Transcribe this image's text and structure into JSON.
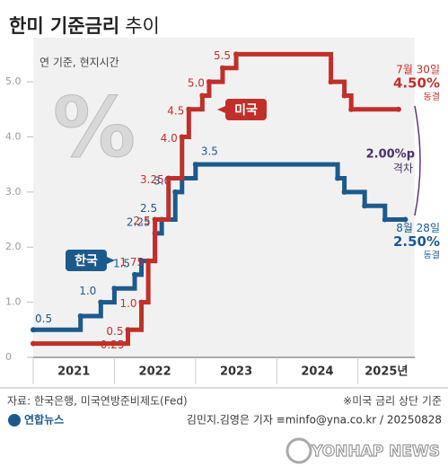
{
  "chart_data": {
    "type": "step",
    "title": "한미 기준금리",
    "title_suffix": "추이",
    "subtitle": "연 기준, 현지시간",
    "decor_symbol": "%",
    "xlim": [
      2021,
      2025.7
    ],
    "xticks": [
      {
        "value": 2021,
        "label": "2021"
      },
      {
        "value": 2022,
        "label": "2022"
      },
      {
        "value": 2023,
        "label": "2023"
      },
      {
        "value": 2024,
        "label": "2024"
      },
      {
        "value": 2025,
        "label": "2025년"
      }
    ],
    "ylim": [
      0,
      5.8
    ],
    "yticks": [
      0,
      {
        "value": 1,
        "label": "1.0"
      },
      {
        "value": 2,
        "label": "2.0"
      },
      {
        "value": 3,
        "label": "3.0"
      },
      {
        "value": 4,
        "label": "4.0"
      },
      {
        "value": 5,
        "label": "5.0"
      }
    ],
    "series": [
      {
        "name": "한국",
        "color": "#1d5a8c",
        "x": [
          2021,
          2021.583,
          2021.833,
          2022,
          2022.25,
          2022.333,
          2022.5,
          2022.583,
          2022.75,
          2022.833,
          2023,
          2024.75,
          2024.833,
          2025.083,
          2025.333,
          2025.583
        ],
        "values": [
          0.5,
          0.75,
          1,
          1.25,
          1.5,
          1.75,
          2.25,
          2.5,
          3,
          3.25,
          3.5,
          3.25,
          3,
          2.75,
          2.5,
          2.5
        ],
        "value_labels": [
          "0.5",
          null,
          "1.0",
          null,
          "1.5",
          null,
          "2.25",
          "2.5",
          "3.0",
          null,
          "3.5",
          null,
          null,
          null,
          null,
          null
        ],
        "end_date": "8월 28일",
        "end_value": "2.50%",
        "end_note": "동결"
      },
      {
        "name": "미국",
        "color": "#c0302a",
        "x": [
          2021,
          2022.167,
          2022.333,
          2022.417,
          2022.5,
          2022.667,
          2022.833,
          2022.917,
          2023.083,
          2023.167,
          2023.333,
          2023.5,
          2024.667,
          2024.833,
          2024.917,
          2025.5
        ],
        "values": [
          0.25,
          0.5,
          1,
          1.75,
          2.5,
          3.25,
          4,
          4.5,
          4.75,
          5,
          5.25,
          5.5,
          5,
          4.75,
          4.5,
          4.5
        ],
        "value_labels": [
          "0.25",
          "0.5",
          "1.0",
          "1.75",
          "2.5",
          "3.25",
          "4.0",
          "4.5",
          null,
          "5.0",
          null,
          "5.5",
          null,
          null,
          null,
          null
        ],
        "end_date": "7월 30일",
        "end_value": "4.50%",
        "end_note": "동결"
      }
    ],
    "gap_value": "2.00%p",
    "gap_label": "격차",
    "source": "자료: 한국은행, 미국연방준비제도(Fed)",
    "note": "※미국 금리 상단 기준",
    "logo": "연합뉴스",
    "credit": "김민지.김영은 기자 ≡minfo@yna.co.kr / 20250828",
    "watermark": "YONHAP NEWS"
  }
}
